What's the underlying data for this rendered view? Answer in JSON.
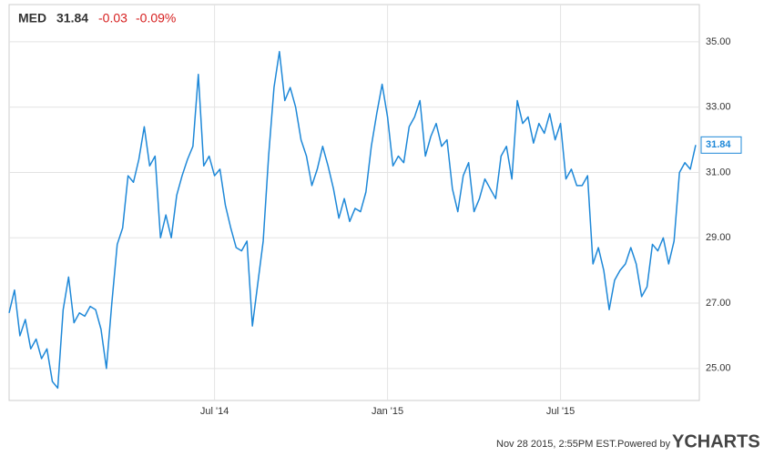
{
  "chart_data": {
    "type": "line",
    "header": {
      "ticker": "MED",
      "price": "31.84",
      "change": "-0.03",
      "change_percent": "-0.09%"
    },
    "footer": {
      "timestamp": "Nov 28 2015, 2:55PM EST.",
      "powered_by": "Powered by",
      "brand": "YCHARTS"
    },
    "categories": [
      null,
      null,
      null,
      null,
      null,
      null,
      null,
      null,
      null,
      null,
      null,
      null,
      null,
      null,
      null,
      null,
      null,
      null,
      null,
      null,
      null,
      null,
      null,
      null,
      null,
      null,
      null,
      null,
      null,
      null,
      null,
      null,
      null,
      null,
      null,
      null,
      null,
      null,
      "Jul '14",
      null,
      null,
      null,
      null,
      null,
      null,
      null,
      null,
      null,
      null,
      null,
      null,
      null,
      null,
      null,
      null,
      null,
      null,
      null,
      null,
      null,
      null,
      null,
      null,
      null,
      null,
      null,
      null,
      null,
      null,
      null,
      "Jan '15",
      null,
      null,
      null,
      null,
      null,
      null,
      null,
      null,
      null,
      null,
      null,
      null,
      null,
      null,
      null,
      null,
      null,
      null,
      null,
      null,
      null,
      null,
      null,
      null,
      null,
      null,
      null,
      null,
      null,
      null,
      null,
      "Jul '15",
      null,
      null,
      null,
      null,
      null,
      null,
      null,
      null,
      null,
      null,
      null,
      null,
      null,
      null,
      null,
      null,
      null,
      null,
      null,
      null,
      null,
      null,
      null,
      null,
      null
    ],
    "series": [
      {
        "name": "MED",
        "color": "#1e88d8",
        "values": [
          26.7,
          27.4,
          26.0,
          26.5,
          25.6,
          25.9,
          25.3,
          25.6,
          24.6,
          24.4,
          26.8,
          27.8,
          26.4,
          26.7,
          26.6,
          26.9,
          26.8,
          26.2,
          25.0,
          27.0,
          28.8,
          29.3,
          30.9,
          30.7,
          31.4,
          32.4,
          31.2,
          31.5,
          29.0,
          29.7,
          29.0,
          30.3,
          30.9,
          31.4,
          31.8,
          34.0,
          31.2,
          31.5,
          30.9,
          31.1,
          30.0,
          29.3,
          28.7,
          28.6,
          28.9,
          26.3,
          27.6,
          28.9,
          31.5,
          33.6,
          34.7,
          33.2,
          33.6,
          33.0,
          32.0,
          31.5,
          30.6,
          31.1,
          31.8,
          31.2,
          30.5,
          29.6,
          30.2,
          29.5,
          29.9,
          29.8,
          30.4,
          31.8,
          32.8,
          33.7,
          32.7,
          31.2,
          31.5,
          31.3,
          32.4,
          32.7,
          33.2,
          31.5,
          32.1,
          32.5,
          31.8,
          32.0,
          30.5,
          29.8,
          30.9,
          31.3,
          29.8,
          30.2,
          30.8,
          30.5,
          30.2,
          31.5,
          31.8,
          30.8,
          33.2,
          32.5,
          32.7,
          31.9,
          32.5,
          32.2,
          32.8,
          32.0,
          32.5,
          30.8,
          31.1,
          30.6,
          30.6,
          30.9,
          28.2,
          28.7,
          28.0,
          26.8,
          27.7,
          28.0,
          28.2,
          28.7,
          28.2,
          27.2,
          27.5,
          28.8,
          28.6,
          29.0,
          28.2,
          28.9,
          31.0,
          31.3,
          31.1,
          31.84
        ]
      }
    ],
    "ylim": [
      24.02,
      36.14
    ],
    "yticks": [
      {
        "value": 25,
        "label": "25.00"
      },
      {
        "value": 27,
        "label": "27.00"
      },
      {
        "value": 29,
        "label": "29.00"
      },
      {
        "value": 31,
        "label": "31.00"
      },
      {
        "value": 33,
        "label": "33.00"
      },
      {
        "value": 35,
        "label": "35.00"
      }
    ],
    "grid": true
  }
}
